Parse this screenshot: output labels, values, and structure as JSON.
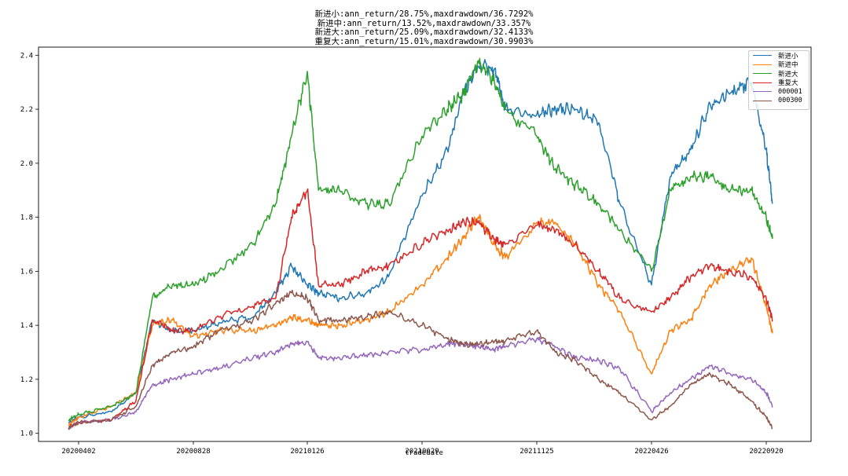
{
  "chart_data": {
    "type": "line",
    "title_lines": [
      "新进小:ann_return/28.75%,maxdrawdown/36.7292%",
      "新进中:ann_return/13.52%,maxdrawdown/33.357%",
      "新进大:ann_return/25.09%,maxdrawdown/32.4133%",
      "重复大:ann_return/15.01%,maxdrawdown/30.9903%"
    ],
    "xlabel": "tradedate",
    "ylabel": "",
    "x_ticks": [
      "20200402",
      "20200828",
      "20210126",
      "20210629",
      "20211125",
      "20220426",
      "20220920"
    ],
    "y_ticks": [
      "1.0",
      "1.2",
      "1.4",
      "1.6",
      "1.8",
      "2.0",
      "2.2",
      "2.4"
    ],
    "ylim": [
      0.97,
      2.43
    ],
    "legend_placement": "top-right",
    "grid": false,
    "x": [
      "2020-03-20",
      "2020-04-02",
      "2020-05-15",
      "2020-06-15",
      "2020-07-06",
      "2020-08-01",
      "2020-08-28",
      "2020-10-01",
      "2020-11-15",
      "2020-12-15",
      "2021-01-05",
      "2021-01-26",
      "2021-02-10",
      "2021-03-10",
      "2021-04-15",
      "2021-05-15",
      "2021-06-29",
      "2021-08-01",
      "2021-08-20",
      "2021-09-10",
      "2021-10-01",
      "2021-10-15",
      "2021-11-25",
      "2021-12-20",
      "2022-01-15",
      "2022-02-15",
      "2022-03-15",
      "2022-04-26",
      "2022-05-20",
      "2022-06-15",
      "2022-07-10",
      "2022-08-05",
      "2022-09-01",
      "2022-09-20",
      "2022-09-28"
    ],
    "series": [
      {
        "name": "新进小",
        "color": "#1f77b4",
        "values": [
          1.04,
          1.06,
          1.08,
          1.15,
          1.42,
          1.38,
          1.38,
          1.41,
          1.43,
          1.52,
          1.62,
          1.55,
          1.52,
          1.5,
          1.52,
          1.58,
          1.88,
          2.05,
          2.25,
          2.36,
          2.35,
          2.2,
          2.18,
          2.2,
          2.2,
          2.15,
          1.85,
          1.55,
          1.95,
          2.05,
          2.22,
          2.26,
          2.3,
          2.05,
          1.85
        ]
      },
      {
        "name": "新进中",
        "color": "#ff7f0e",
        "values": [
          1.03,
          1.06,
          1.1,
          1.15,
          1.4,
          1.42,
          1.36,
          1.38,
          1.38,
          1.4,
          1.43,
          1.42,
          1.4,
          1.4,
          1.42,
          1.45,
          1.55,
          1.65,
          1.72,
          1.8,
          1.7,
          1.65,
          1.78,
          1.78,
          1.7,
          1.55,
          1.45,
          1.22,
          1.38,
          1.42,
          1.55,
          1.6,
          1.65,
          1.47,
          1.37
        ]
      },
      {
        "name": "新进大",
        "color": "#2ca02c",
        "values": [
          1.05,
          1.07,
          1.1,
          1.15,
          1.5,
          1.55,
          1.55,
          1.6,
          1.7,
          1.85,
          2.1,
          2.34,
          1.9,
          1.9,
          1.85,
          1.85,
          2.1,
          2.2,
          2.25,
          2.38,
          2.3,
          2.2,
          2.1,
          1.98,
          1.92,
          1.85,
          1.75,
          1.6,
          1.9,
          1.95,
          1.95,
          1.9,
          1.9,
          1.8,
          1.72
        ]
      },
      {
        "name": "重复大",
        "color": "#d62728",
        "values": [
          1.02,
          1.04,
          1.05,
          1.12,
          1.42,
          1.38,
          1.38,
          1.43,
          1.47,
          1.5,
          1.8,
          1.9,
          1.55,
          1.55,
          1.6,
          1.62,
          1.7,
          1.75,
          1.78,
          1.78,
          1.72,
          1.7,
          1.77,
          1.75,
          1.7,
          1.6,
          1.5,
          1.45,
          1.5,
          1.58,
          1.62,
          1.6,
          1.58,
          1.5,
          1.42
        ]
      },
      {
        "name": "000001",
        "color": "#9467bd",
        "values": [
          1.02,
          1.04,
          1.05,
          1.08,
          1.18,
          1.2,
          1.22,
          1.24,
          1.28,
          1.3,
          1.33,
          1.34,
          1.28,
          1.28,
          1.29,
          1.3,
          1.31,
          1.33,
          1.33,
          1.32,
          1.31,
          1.32,
          1.35,
          1.32,
          1.28,
          1.27,
          1.24,
          1.08,
          1.15,
          1.2,
          1.25,
          1.22,
          1.2,
          1.15,
          1.1
        ]
      },
      {
        "name": "000300",
        "color": "#8c564b",
        "values": [
          1.02,
          1.04,
          1.05,
          1.1,
          1.25,
          1.3,
          1.32,
          1.38,
          1.42,
          1.48,
          1.52,
          1.5,
          1.42,
          1.42,
          1.43,
          1.45,
          1.4,
          1.35,
          1.33,
          1.33,
          1.34,
          1.34,
          1.38,
          1.3,
          1.27,
          1.2,
          1.15,
          1.05,
          1.1,
          1.18,
          1.22,
          1.18,
          1.12,
          1.06,
          1.02
        ]
      }
    ]
  }
}
